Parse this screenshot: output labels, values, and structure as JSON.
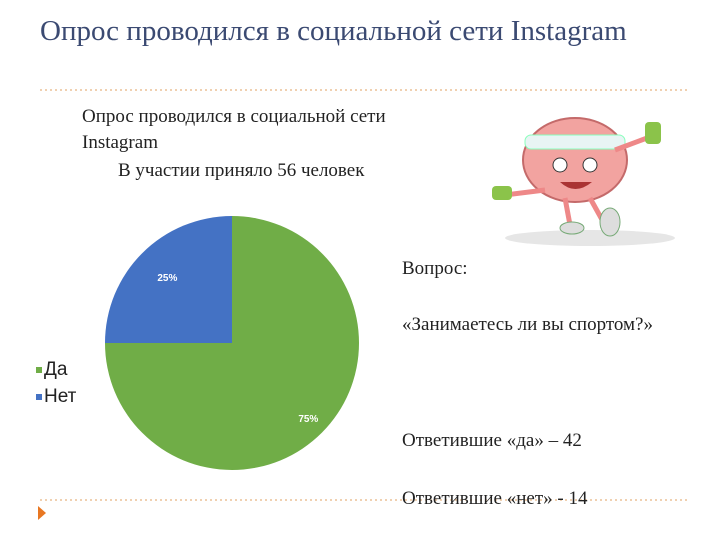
{
  "slide": {
    "title": "Опрос  проводился в социальной сети Instagram",
    "intro": "Опрос проводился в социальной сети Instagram",
    "participants": "В участии приняло 56 человек",
    "question_label": "Вопрос:",
    "question": "«Занимаетесь ли вы спортом?»",
    "answer_yes": "Ответившие «да»  – 42",
    "answer_no": "Ответившие «нет» - 14"
  },
  "chart_data": {
    "type": "pie",
    "categories": [
      "Да",
      "Нет"
    ],
    "values": [
      75,
      25
    ],
    "value_labels": [
      "75%",
      "25%"
    ],
    "colors": [
      "#70ad47",
      "#4472c4"
    ],
    "legend": "left"
  }
}
